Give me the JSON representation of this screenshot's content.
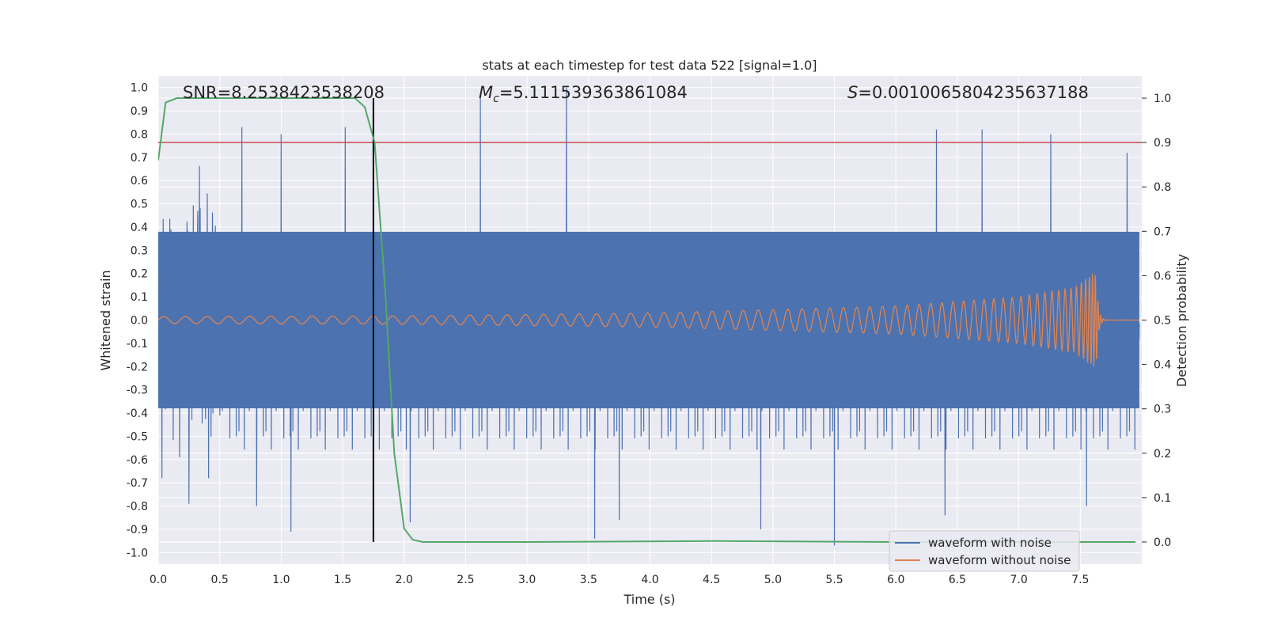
{
  "chart_data": {
    "type": "line",
    "title": "stats at each timestep for test data 522 [signal=1.0]",
    "xlabel": "Time (s)",
    "ylabel": "Whitened strain",
    "y2label": "Detection probability",
    "xlim": [
      0.0,
      8.0
    ],
    "ylim": [
      -1.05,
      1.05
    ],
    "y2lim": [
      -0.05,
      1.05
    ],
    "x_ticks": [
      "0.0",
      "0.5",
      "1.0",
      "1.5",
      "2.0",
      "2.5",
      "3.0",
      "3.5",
      "4.0",
      "4.5",
      "5.0",
      "5.5",
      "6.0",
      "6.5",
      "7.0",
      "7.5"
    ],
    "x_tick_values": [
      0,
      0.5,
      1,
      1.5,
      2,
      2.5,
      3,
      3.5,
      4,
      4.5,
      5,
      5.5,
      6,
      6.5,
      7,
      7.5
    ],
    "y_ticks": [
      "1.0",
      "0.9",
      "0.8",
      "0.7",
      "0.6",
      "0.5",
      "0.4",
      "0.3",
      "0.2",
      "0.1",
      "0.0",
      "-0.1",
      "-0.2",
      "-0.3",
      "-0.4",
      "-0.5",
      "-0.6",
      "-0.7",
      "-0.8",
      "-0.9",
      "-1.0"
    ],
    "y_tick_values": [
      1.0,
      0.9,
      0.8,
      0.7,
      0.6,
      0.5,
      0.4,
      0.3,
      0.2,
      0.1,
      0.0,
      -0.1,
      -0.2,
      -0.3,
      -0.4,
      -0.5,
      -0.6,
      -0.7,
      -0.8,
      -0.9,
      -1.0
    ],
    "y2_ticks": [
      "1.0",
      "0.9",
      "0.8",
      "0.7",
      "0.6",
      "0.5",
      "0.4",
      "0.3",
      "0.2",
      "0.1",
      "0.0"
    ],
    "y2_tick_values": [
      1.0,
      0.9,
      0.8,
      0.7,
      0.6,
      0.5,
      0.4,
      0.3,
      0.2,
      0.1,
      0.0
    ],
    "grid": true,
    "legend_position": "lower-right",
    "annotations": {
      "snr": "SNR=8.2538423538208",
      "mc_symbol": "M",
      "mc_sub": "c",
      "mc_value": "=5.111539363861084",
      "s_symbol": "S",
      "s_value": "=0.0010065804235637188"
    },
    "series": [
      {
        "name": "waveform with noise",
        "color": "#4c72b0",
        "description": "dense whitened noisy strain, roughly within ±0.6 with peaks to ~1.0 and ~-1.0",
        "envelope": 0.38,
        "spikes": [
          {
            "x": 0.68,
            "y": 0.83
          },
          {
            "x": 1.0,
            "y": 0.8
          },
          {
            "x": 1.52,
            "y": 0.83
          },
          {
            "x": 2.62,
            "y": 0.96
          },
          {
            "x": 3.32,
            "y": 1.0
          },
          {
            "x": 6.33,
            "y": 0.82
          },
          {
            "x": 6.7,
            "y": 0.82
          },
          {
            "x": 7.26,
            "y": 0.8
          },
          {
            "x": 7.88,
            "y": 0.72
          },
          {
            "x": 1.08,
            "y": -0.91
          },
          {
            "x": 3.55,
            "y": -0.94
          },
          {
            "x": 5.5,
            "y": -0.97
          },
          {
            "x": 2.05,
            "y": -0.87
          },
          {
            "x": 0.8,
            "y": -0.8
          },
          {
            "x": 4.9,
            "y": -0.9
          },
          {
            "x": 6.4,
            "y": -0.84
          },
          {
            "x": 3.75,
            "y": -0.86
          },
          {
            "x": 0.03,
            "y": -0.68
          },
          {
            "x": 0.25,
            "y": -0.79
          },
          {
            "x": 7.55,
            "y": -0.8
          }
        ]
      },
      {
        "name": "waveform without noise",
        "color": "#dd8452",
        "description": "chirp signal with growing amplitude up to ~0.2, merger near t=7.63 s",
        "amplitude": [
          [
            0.0,
            0.015
          ],
          [
            2.0,
            0.018
          ],
          [
            4.0,
            0.03
          ],
          [
            6.0,
            0.06
          ],
          [
            7.0,
            0.1
          ],
          [
            7.45,
            0.14
          ],
          [
            7.6,
            0.2
          ]
        ],
        "merger_time": 7.63
      },
      {
        "color": "#55a868",
        "axis": "y2",
        "x": [
          0.0,
          0.06,
          0.15,
          0.5,
          1.0,
          1.5,
          1.6,
          1.68,
          1.76,
          1.85,
          1.92,
          2.0,
          2.07,
          2.15,
          3.0,
          4.5,
          6.0,
          7.0,
          7.95
        ],
        "y": [
          0.86,
          0.99,
          1.0,
          1.0,
          1.0,
          1.0,
          1.0,
          0.98,
          0.9,
          0.55,
          0.2,
          0.03,
          0.005,
          0.0,
          0.0,
          0.002,
          0.0,
          0.0,
          0.0
        ]
      }
    ],
    "threshold": {
      "color": "#c44e52",
      "y2": 0.9
    },
    "vline": {
      "color": "#000000",
      "x": 1.75,
      "y2_range": [
        0.0,
        1.0
      ]
    }
  }
}
